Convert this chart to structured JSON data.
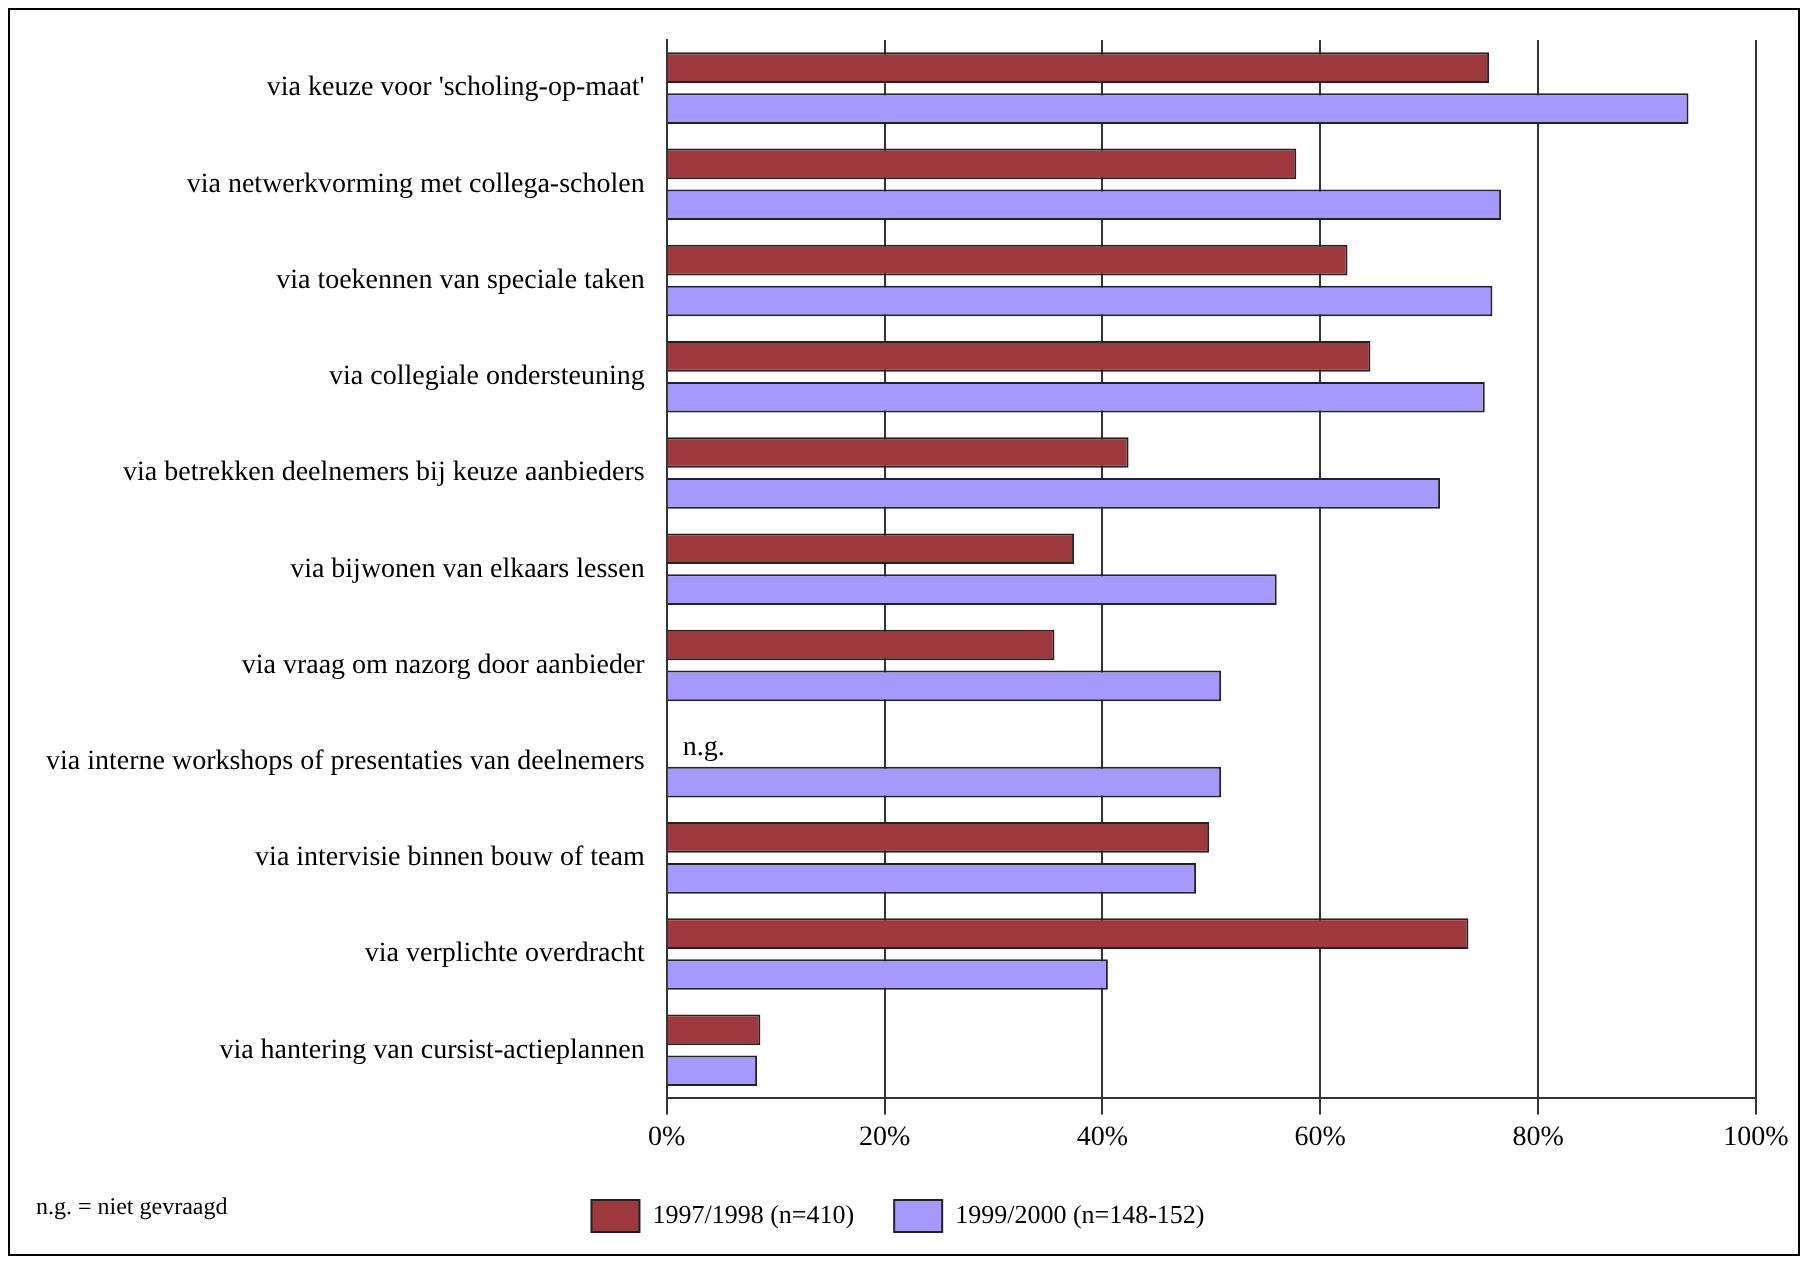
{
  "chart_data": {
    "type": "bar",
    "orientation": "horizontal",
    "categories": [
      "via keuze voor 'scholing-op-maat'",
      "via netwerkvorming met collega-scholen",
      "via toekennen van speciale taken",
      "via collegiale ondersteuning",
      "via betrekken deelnemers bij keuze aanbieders",
      "via bijwonen van elkaars lessen",
      "via vraag om nazorg door aanbieder",
      "via interne workshops of presentaties van deelnemers",
      "via intervisie binnen bouw of team",
      "via verplichte overdracht",
      "via hantering van cursist-actieplannen"
    ],
    "series": [
      {
        "name": "1997/1998 (n=410)",
        "color": "#9e3a3e",
        "values": [
          75.5,
          57.8,
          62.5,
          64.6,
          42.4,
          37.4,
          35.6,
          null,
          49.8,
          73.6,
          8.6
        ]
      },
      {
        "name": "1999/2000 (n=148-152)",
        "color": "#a599ff",
        "values": [
          93.8,
          76.6,
          75.8,
          75.1,
          71.0,
          56.0,
          50.9,
          50.9,
          48.6,
          40.5,
          8.3
        ]
      }
    ],
    "xlim": [
      0,
      100
    ],
    "xticks": [
      {
        "value": 0,
        "label": "0%"
      },
      {
        "value": 20,
        "label": "20%"
      },
      {
        "value": 40,
        "label": "40%"
      },
      {
        "value": 60,
        "label": "60%"
      },
      {
        "value": 80,
        "label": "80%"
      },
      {
        "value": 100,
        "label": "100%"
      }
    ],
    "grid": "x",
    "legend": "bottom",
    "annotations": [
      {
        "text": "n.g.",
        "x": 0,
        "y": "via interne workshops of presentaties van deelnemers"
      },
      "n.g. = niet gevraagd"
    ]
  }
}
